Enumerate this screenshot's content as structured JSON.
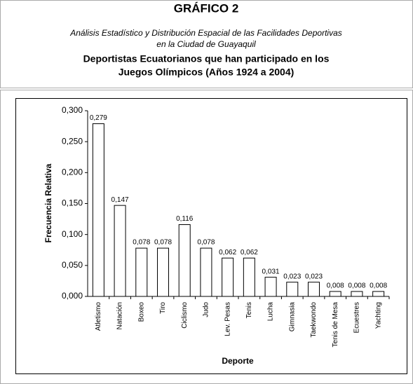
{
  "header": {
    "title": "GRÁFICO 2",
    "subtitle_lines": [
      "Análisis Estadístico y Distribución Espacial de las Facilidades Deportivas",
      "en la Ciudad de Guayaquil"
    ]
  },
  "chart_data": {
    "type": "bar",
    "title_lines": [
      "Deportistas Ecuatorianos que han participado en los",
      "Juegos Olímpicos (Años 1924 a 2004)"
    ],
    "x_label": "Deporte",
    "y_label": "Frecuencia Relativa",
    "categories": [
      "Atletismo",
      "Natación",
      "Boxeo",
      "Tiro",
      "Ciclismo",
      "Judo",
      "Lev. Pesas",
      "Tenis",
      "Lucha",
      "Gimnasia",
      "Taekwondo",
      "Tenis de Mesa",
      "Ecuestres",
      "Yachting"
    ],
    "values": [
      0.279,
      0.147,
      0.078,
      0.078,
      0.116,
      0.078,
      0.062,
      0.062,
      0.031,
      0.023,
      0.023,
      0.008,
      0.008,
      0.008
    ],
    "value_labels": [
      "0,279",
      "0,147",
      "0,078",
      "0,078",
      "0,116",
      "0,078",
      "0,062",
      "0,062",
      "0,031",
      "0,023",
      "0,023",
      "0,008",
      "0,008",
      "0,008"
    ],
    "color": "#ffffff",
    "ylim": [
      0,
      0.3
    ],
    "yticks": [
      {
        "value": 0,
        "label": "0,000"
      },
      {
        "value": 0.05,
        "label": "0,050"
      },
      {
        "value": 0.1,
        "label": "0,100"
      },
      {
        "value": 0.15,
        "label": "0,150"
      },
      {
        "value": 0.2,
        "label": "0,200"
      },
      {
        "value": 0.25,
        "label": "0,250"
      },
      {
        "value": 0.3,
        "label": "0,300"
      }
    ],
    "grid": false
  }
}
